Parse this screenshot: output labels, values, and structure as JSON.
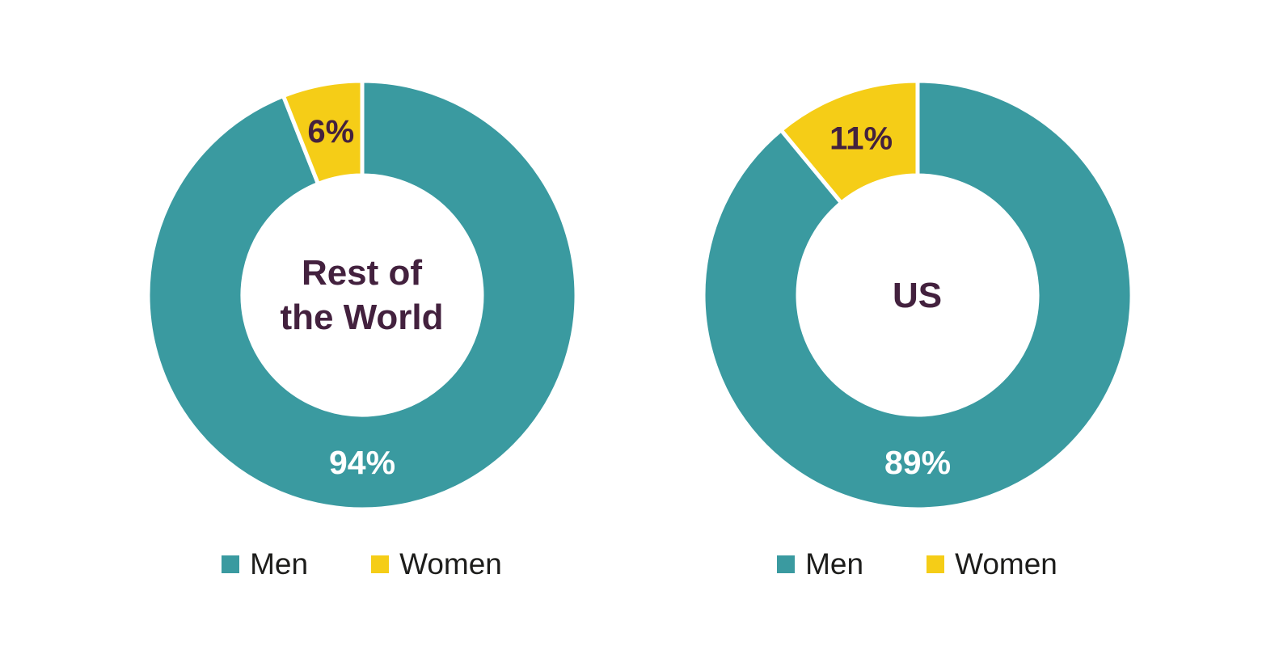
{
  "page": {
    "background": "#ffffff"
  },
  "colors": {
    "men_teal": "#3a9aa0",
    "women_yellow": "#f5cd17",
    "center_title_text": "#43213e",
    "major_value_text": "#ffffff",
    "minor_value_text": "#43213e",
    "legend_text": "#1d1d1b"
  },
  "chart_data": [
    {
      "type": "pie",
      "subtype": "donut",
      "title": "Rest of\nthe World",
      "legend_position": "bottom",
      "units": "percent",
      "series": [
        {
          "name": "Men",
          "value": 94,
          "label": "94%",
          "color": "#3a9aa0"
        },
        {
          "name": "Women",
          "value": 6,
          "label": "6%",
          "color": "#f5cd17"
        }
      ]
    },
    {
      "type": "pie",
      "subtype": "donut",
      "title": "US",
      "legend_position": "bottom",
      "units": "percent",
      "series": [
        {
          "name": "Men",
          "value": 89,
          "label": "89%",
          "color": "#3a9aa0"
        },
        {
          "name": "Women",
          "value": 11,
          "label": "11%",
          "color": "#f5cd17"
        }
      ]
    }
  ]
}
